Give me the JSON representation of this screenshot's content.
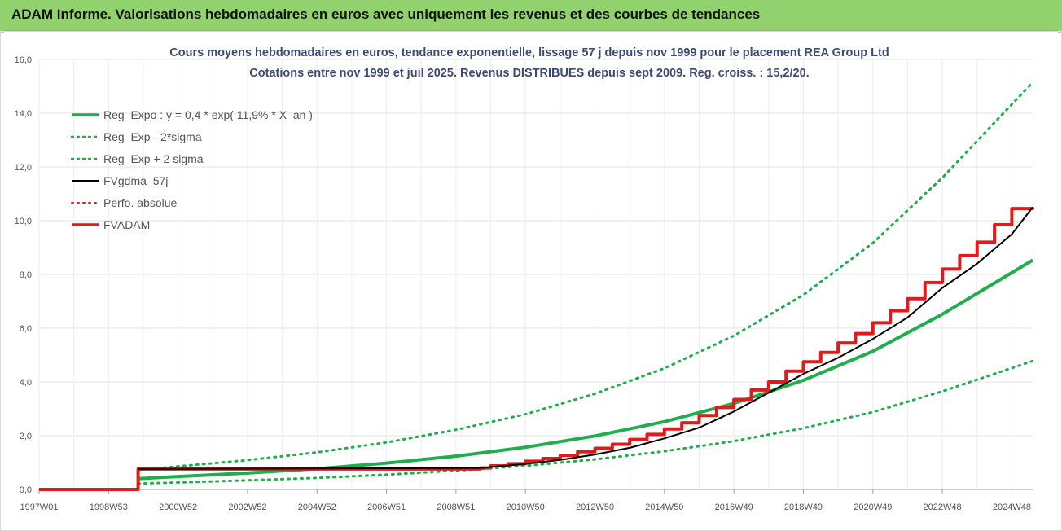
{
  "header": {
    "title": "ADAM Informe. Valorisations hebdomadaires en euros avec uniquement les revenus et des courbes de tendances",
    "colors": {
      "banner": "#92d26e",
      "corner": "#f0c419"
    }
  },
  "chart_data": {
    "type": "line",
    "title": "Cours moyens hebdomadaires en euros, tendance exponentielle, lissage 57 j depuis nov 1999 pour le placement REA Group Ltd",
    "subtitle": "Cotations entre nov 1999 et juil 2025. Revenus DISTRIBUES depuis sept 2009. Reg. croiss. : 15,2/20.",
    "xlabel": "",
    "ylabel": "",
    "ylim": [
      0,
      16
    ],
    "xlim": [
      1997.0,
      2025.6
    ],
    "y_ticks": [
      "0,0",
      "2,0",
      "4,0",
      "6,0",
      "8,0",
      "10,0",
      "12,0",
      "14,0",
      "16,0"
    ],
    "x_ticks": [
      {
        "label": "1997W01",
        "x": 1997.0
      },
      {
        "label": "1998W53",
        "x": 1999.0
      },
      {
        "label": "2000W52",
        "x": 2001.0
      },
      {
        "label": "2002W52",
        "x": 2003.0
      },
      {
        "label": "2004W52",
        "x": 2005.0
      },
      {
        "label": "2006W51",
        "x": 2007.0
      },
      {
        "label": "2008W51",
        "x": 2009.0
      },
      {
        "label": "2010W50",
        "x": 2011.0
      },
      {
        "label": "2012W50",
        "x": 2013.0
      },
      {
        "label": "2014W50",
        "x": 2015.0
      },
      {
        "label": "2016W49",
        "x": 2017.0
      },
      {
        "label": "2018W49",
        "x": 2019.0
      },
      {
        "label": "2020W49",
        "x": 2021.0
      },
      {
        "label": "2022W48",
        "x": 2023.0
      },
      {
        "label": "2024W48",
        "x": 2025.0
      }
    ],
    "grid": true,
    "legend_position": "top-left",
    "series": [
      {
        "name": "Reg_Expo : y = 0,4 * exp( 11,9% *  X_an )",
        "style": "solid",
        "color": "#1fae4b",
        "width": 4,
        "x": [
          1999.85,
          2001,
          2003,
          2005,
          2007,
          2009,
          2011,
          2013,
          2015,
          2017,
          2019,
          2021,
          2023,
          2025.6
        ],
        "values": [
          0.4,
          0.48,
          0.61,
          0.77,
          0.98,
          1.24,
          1.57,
          1.99,
          2.52,
          3.2,
          4.06,
          5.14,
          6.52,
          8.53
        ]
      },
      {
        "name": "Reg_Exp - 2*sigma",
        "style": "dotted",
        "color": "#1fae4b",
        "width": 3,
        "x": [
          1999.85,
          2001,
          2003,
          2005,
          2007,
          2009,
          2011,
          2013,
          2015,
          2017,
          2019,
          2021,
          2023,
          2025.6
        ],
        "values": [
          0.22,
          0.26,
          0.34,
          0.43,
          0.55,
          0.7,
          0.88,
          1.12,
          1.42,
          1.8,
          2.28,
          2.88,
          3.65,
          4.78
        ]
      },
      {
        "name": "Reg_Exp + 2 sigma",
        "style": "dotted",
        "color": "#1fae4b",
        "width": 3,
        "x": [
          1999.85,
          2001,
          2003,
          2005,
          2007,
          2009,
          2011,
          2013,
          2015,
          2017,
          2019,
          2021,
          2023,
          2025.6
        ],
        "values": [
          0.72,
          0.86,
          1.09,
          1.38,
          1.75,
          2.22,
          2.8,
          3.56,
          4.51,
          5.72,
          7.24,
          9.17,
          11.6,
          15.15
        ]
      },
      {
        "name": "FVgdma_57j",
        "style": "solid",
        "color": "#000000",
        "width": 2,
        "x": [
          1999.85,
          2009.7,
          2011,
          2012,
          2013,
          2014,
          2015,
          2016,
          2017,
          2018,
          2019,
          2020,
          2021,
          2022,
          2023,
          2024,
          2025,
          2025.6
        ],
        "values": [
          0.76,
          0.8,
          0.95,
          1.1,
          1.3,
          1.55,
          1.9,
          2.3,
          2.9,
          3.6,
          4.3,
          4.9,
          5.6,
          6.4,
          7.5,
          8.4,
          9.5,
          10.5
        ]
      },
      {
        "name": "Perfo. absolue",
        "style": "dotted",
        "color": "#e02020",
        "width": 2,
        "x": [],
        "values": []
      },
      {
        "name": "FVADAM",
        "style": "solid",
        "color": "#e41a1a",
        "width": 4,
        "x": [
          1997.0,
          1999.85,
          1999.85,
          2009.7,
          2010.0,
          2010.5,
          2011.0,
          2011.5,
          2012.0,
          2012.5,
          2013.0,
          2013.5,
          2014.0,
          2014.5,
          2015.0,
          2015.5,
          2016.0,
          2016.5,
          2017.0,
          2017.5,
          2018.0,
          2018.5,
          2019.0,
          2019.5,
          2020.0,
          2020.5,
          2021.0,
          2021.5,
          2022.0,
          2022.5,
          2023.0,
          2023.5,
          2024.0,
          2024.5,
          2025.0,
          2025.6
        ],
        "values": [
          0.0,
          0.0,
          0.76,
          0.8,
          0.88,
          0.96,
          1.05,
          1.15,
          1.27,
          1.4,
          1.53,
          1.68,
          1.86,
          2.05,
          2.25,
          2.48,
          2.75,
          3.05,
          3.35,
          3.7,
          4.0,
          4.4,
          4.75,
          5.1,
          5.45,
          5.8,
          6.2,
          6.65,
          7.1,
          7.7,
          8.2,
          8.7,
          9.2,
          9.85,
          10.45,
          10.5
        ]
      }
    ]
  }
}
